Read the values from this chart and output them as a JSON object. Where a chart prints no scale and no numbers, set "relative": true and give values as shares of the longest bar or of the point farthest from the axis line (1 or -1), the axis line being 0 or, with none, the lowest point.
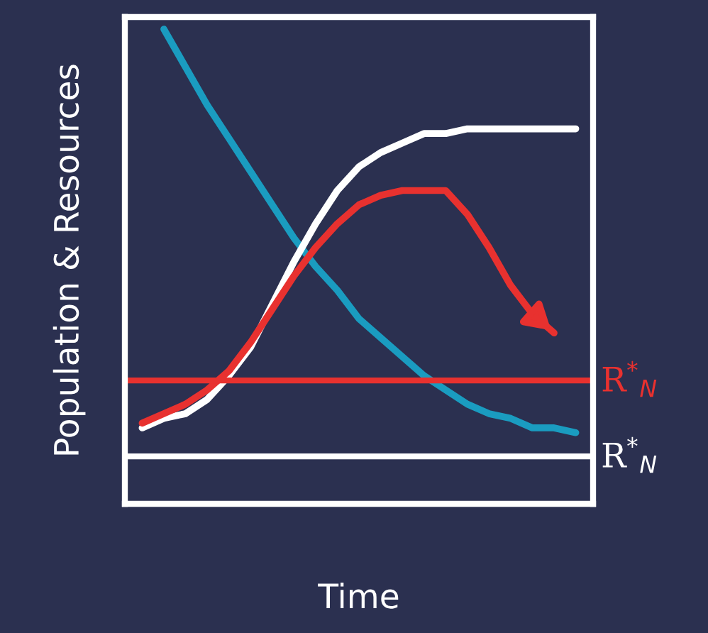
{
  "chart_data": {
    "type": "line",
    "relative": true,
    "xlabel": "Time",
    "ylabel": "Population & Resources",
    "categories": [
      null,
      null,
      null,
      null,
      null,
      null,
      null,
      null,
      null,
      null,
      null,
      null,
      null,
      null,
      null,
      null,
      null,
      null,
      null,
      null,
      null
    ],
    "series": [
      {
        "color": "#1a9cc0",
        "values": [
          null,
          1.0,
          0.92,
          0.84,
          0.77,
          0.7,
          0.63,
          0.56,
          0.5,
          0.45,
          0.39,
          0.35,
          0.31,
          0.27,
          0.24,
          0.21,
          0.19,
          0.18,
          0.16,
          0.16,
          0.15
        ]
      },
      {
        "color": "#ffffff",
        "values": [
          0.16,
          0.18,
          0.19,
          0.22,
          0.27,
          0.33,
          0.42,
          0.51,
          0.59,
          0.66,
          0.71,
          0.74,
          0.76,
          0.78,
          0.78,
          0.79,
          0.79,
          0.79,
          0.79,
          0.79,
          0.79
        ]
      },
      {
        "color": "#e8312f",
        "values": [
          0.17,
          0.19,
          0.21,
          0.24,
          0.28,
          0.34,
          0.41,
          0.48,
          0.54,
          0.59,
          0.63,
          0.65,
          0.66,
          0.66,
          0.66,
          0.61,
          0.54,
          0.46,
          0.4,
          0.36,
          null
        ]
      }
    ],
    "ref_lines": [
      {
        "axis": "y",
        "value": 0.26,
        "label": "R$^{*}$$_{N}$",
        "color": "#e8312f"
      },
      {
        "axis": "y",
        "value": 0.1,
        "label": "R$^{*}$$_{N}$",
        "color": "#ffffff"
      }
    ],
    "legend": false,
    "marker": "none",
    "line_style": "solid"
  }
}
